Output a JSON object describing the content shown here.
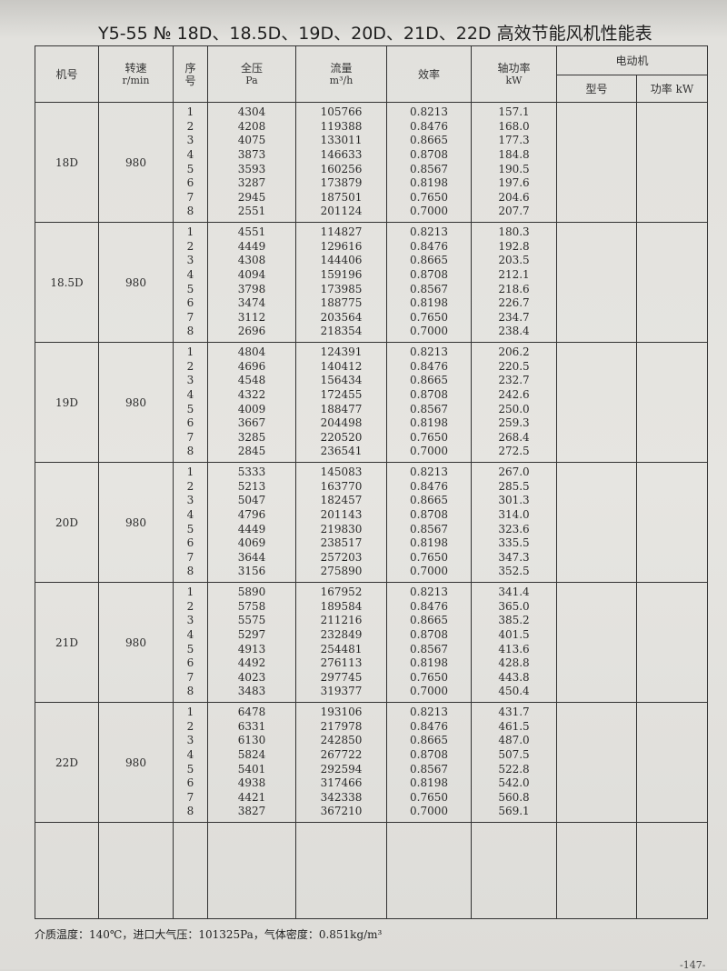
{
  "title": "Y5-55 № 18D、18.5D、19D、20D、21D、22D 高效节能风机性能表",
  "headers": {
    "model": "机号",
    "speed": "转速",
    "speed_unit": "r/min",
    "seq": "序号",
    "pressure": "全压",
    "pressure_unit": "Pa",
    "flow": "流量",
    "flow_unit": "m³/h",
    "efficiency": "效率",
    "shaft_power": "轴功率",
    "shaft_power_unit": "kW",
    "motor": "电动机",
    "motor_type": "型号",
    "motor_power": "功率 kW"
  },
  "groups": [
    {
      "model": "18D",
      "speed": "980",
      "seq": [
        "1",
        "2",
        "3",
        "4",
        "5",
        "6",
        "7",
        "8"
      ],
      "pressure": [
        "4304",
        "4208",
        "4075",
        "3873",
        "3593",
        "3287",
        "2945",
        "2551"
      ],
      "flow": [
        "105766",
        "119388",
        "133011",
        "146633",
        "160256",
        "173879",
        "187501",
        "201124"
      ],
      "efficiency": [
        "0.8213",
        "0.8476",
        "0.8665",
        "0.8708",
        "0.8567",
        "0.8198",
        "0.7650",
        "0.7000"
      ],
      "shaft_power": [
        "157.1",
        "168.0",
        "177.3",
        "184.8",
        "190.5",
        "197.6",
        "204.6",
        "207.7"
      ]
    },
    {
      "model": "18.5D",
      "speed": "980",
      "seq": [
        "1",
        "2",
        "3",
        "4",
        "5",
        "6",
        "7",
        "8"
      ],
      "pressure": [
        "4551",
        "4449",
        "4308",
        "4094",
        "3798",
        "3474",
        "3112",
        "2696"
      ],
      "flow": [
        "114827",
        "129616",
        "144406",
        "159196",
        "173985",
        "188775",
        "203564",
        "218354"
      ],
      "efficiency": [
        "0.8213",
        "0.8476",
        "0.8665",
        "0.8708",
        "0.8567",
        "0.8198",
        "0.7650",
        "0.7000"
      ],
      "shaft_power": [
        "180.3",
        "192.8",
        "203.5",
        "212.1",
        "218.6",
        "226.7",
        "234.7",
        "238.4"
      ]
    },
    {
      "model": "19D",
      "speed": "980",
      "seq": [
        "1",
        "2",
        "3",
        "4",
        "5",
        "6",
        "7",
        "8"
      ],
      "pressure": [
        "4804",
        "4696",
        "4548",
        "4322",
        "4009",
        "3667",
        "3285",
        "2845"
      ],
      "flow": [
        "124391",
        "140412",
        "156434",
        "172455",
        "188477",
        "204498",
        "220520",
        "236541"
      ],
      "efficiency": [
        "0.8213",
        "0.8476",
        "0.8665",
        "0.8708",
        "0.8567",
        "0.8198",
        "0.7650",
        "0.7000"
      ],
      "shaft_power": [
        "206.2",
        "220.5",
        "232.7",
        "242.6",
        "250.0",
        "259.3",
        "268.4",
        "272.5"
      ]
    },
    {
      "model": "20D",
      "speed": "980",
      "seq": [
        "1",
        "2",
        "3",
        "4",
        "5",
        "6",
        "7",
        "8"
      ],
      "pressure": [
        "5333",
        "5213",
        "5047",
        "4796",
        "4449",
        "4069",
        "3644",
        "3156"
      ],
      "flow": [
        "145083",
        "163770",
        "182457",
        "201143",
        "219830",
        "238517",
        "257203",
        "275890"
      ],
      "efficiency": [
        "0.8213",
        "0.8476",
        "0.8665",
        "0.8708",
        "0.8567",
        "0.8198",
        "0.7650",
        "0.7000"
      ],
      "shaft_power": [
        "267.0",
        "285.5",
        "301.3",
        "314.0",
        "323.6",
        "335.5",
        "347.3",
        "352.5"
      ]
    },
    {
      "model": "21D",
      "speed": "980",
      "seq": [
        "1",
        "2",
        "3",
        "4",
        "5",
        "6",
        "7",
        "8"
      ],
      "pressure": [
        "5890",
        "5758",
        "5575",
        "5297",
        "4913",
        "4492",
        "4023",
        "3483"
      ],
      "flow": [
        "167952",
        "189584",
        "211216",
        "232849",
        "254481",
        "276113",
        "297745",
        "319377"
      ],
      "efficiency": [
        "0.8213",
        "0.8476",
        "0.8665",
        "0.8708",
        "0.8567",
        "0.8198",
        "0.7650",
        "0.7000"
      ],
      "shaft_power": [
        "341.4",
        "365.0",
        "385.2",
        "401.5",
        "413.6",
        "428.8",
        "443.8",
        "450.4"
      ]
    },
    {
      "model": "22D",
      "speed": "980",
      "seq": [
        "1",
        "2",
        "3",
        "4",
        "5",
        "6",
        "7",
        "8"
      ],
      "pressure": [
        "6478",
        "6331",
        "6130",
        "5824",
        "5401",
        "4938",
        "4421",
        "3827"
      ],
      "flow": [
        "193106",
        "217978",
        "242850",
        "267722",
        "292594",
        "317466",
        "342338",
        "367210"
      ],
      "efficiency": [
        "0.8213",
        "0.8476",
        "0.8665",
        "0.8708",
        "0.8567",
        "0.8198",
        "0.7650",
        "0.7000"
      ],
      "shaft_power": [
        "431.7",
        "461.5",
        "487.0",
        "507.5",
        "522.8",
        "542.0",
        "560.8",
        "569.1"
      ]
    }
  ],
  "footer": {
    "text": "介质温度：140℃，进口大气压：101325Pa，气体密度：0.851kg/m³"
  },
  "page_number": "-147-"
}
